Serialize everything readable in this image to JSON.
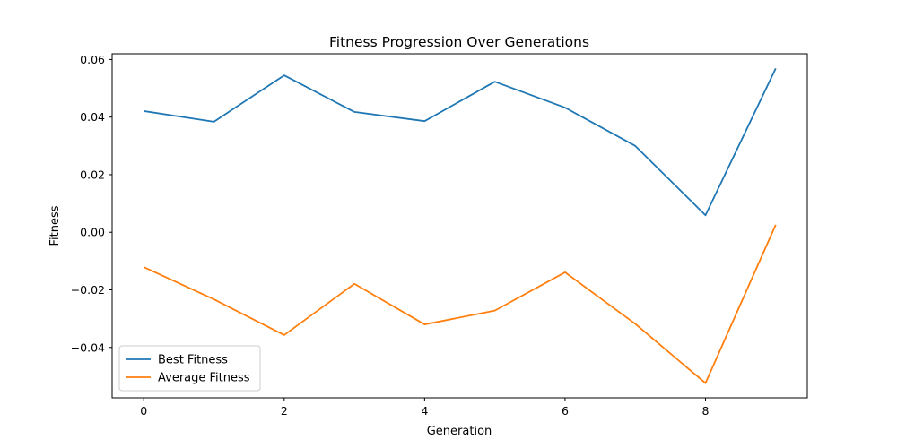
{
  "chart_data": {
    "type": "line",
    "title": "Fitness Progression Over Generations",
    "xlabel": "Generation",
    "ylabel": "Fitness",
    "x": [
      0,
      1,
      2,
      3,
      4,
      5,
      6,
      7,
      8,
      9
    ],
    "xlim": [
      -0.45,
      9.45
    ],
    "ylim": [
      -0.0575,
      0.062
    ],
    "xticks": [
      0,
      2,
      4,
      6,
      8
    ],
    "yticks": [
      -0.04,
      -0.02,
      0.0,
      0.02,
      0.04,
      0.06
    ],
    "ytick_labels": [
      "−0.04",
      "−0.02",
      "0.00",
      "0.02",
      "0.04",
      "0.06"
    ],
    "grid": false,
    "legend": "lower-left",
    "series": [
      {
        "name": "Best Fitness",
        "color": "#1f77b4",
        "values": [
          0.0421,
          0.0384,
          0.0545,
          0.0418,
          0.0386,
          0.0523,
          0.0433,
          0.03,
          0.0059,
          0.0569
        ]
      },
      {
        "name": "Average Fitness",
        "color": "#ff7f0e",
        "values": [
          -0.0121,
          -0.0233,
          -0.0357,
          -0.0179,
          -0.032,
          -0.0272,
          -0.0139,
          -0.0318,
          -0.0524,
          0.0026
        ]
      }
    ]
  }
}
